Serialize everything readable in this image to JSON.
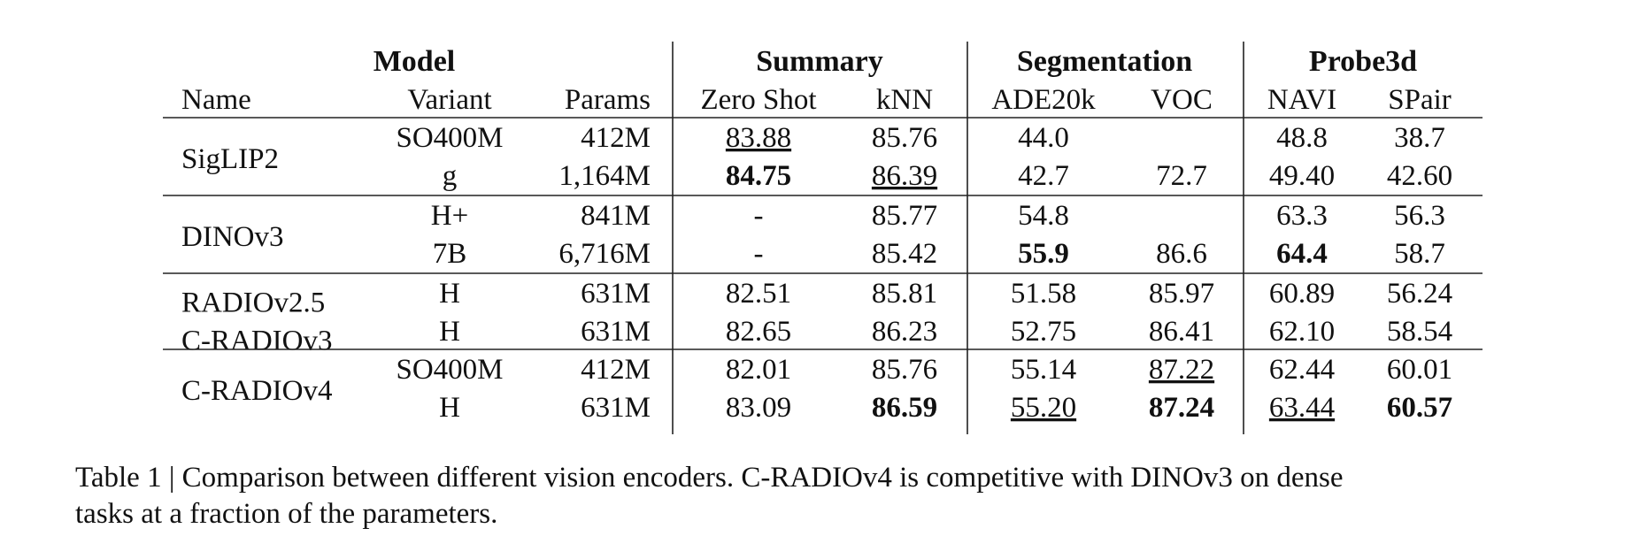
{
  "table": {
    "group_headers": [
      "Model",
      "Summary",
      "Segmentation",
      "Probe3d"
    ],
    "columns": [
      "Name",
      "Variant",
      "Params",
      "Zero Shot",
      "kNN",
      "ADE20k",
      "VOC",
      "NAVI",
      "SPair"
    ],
    "groups": [
      {
        "name": "SigLIP2",
        "rows": [
          [
            "SO400M",
            "412M",
            {
              "text": "83.88",
              "style": "underline"
            },
            "85.76",
            "44.0",
            null,
            "48.8",
            "38.7"
          ],
          [
            "g",
            "1,164M",
            {
              "text": "84.75",
              "style": "bold"
            },
            {
              "text": "86.39",
              "style": "underline"
            },
            "42.7",
            "72.7",
            "49.40",
            "42.60"
          ]
        ]
      },
      {
        "name": "DINOv3",
        "rows": [
          [
            "H+",
            "841M",
            "-",
            "85.77",
            "54.8",
            null,
            "63.3",
            "56.3"
          ],
          [
            "7B",
            "6,716M",
            "-",
            "85.42",
            {
              "text": "55.9",
              "style": "bold"
            },
            "86.6",
            {
              "text": "64.4",
              "style": "bold"
            },
            "58.7"
          ]
        ]
      },
      {
        "name": "RADIOv2.5",
        "rows": [
          [
            "H",
            "631M",
            "82.51",
            "85.81",
            "51.58",
            "85.97",
            "60.89",
            "56.24"
          ]
        ]
      },
      {
        "name": "C-RADIOv3",
        "rows": [
          [
            "H",
            "631M",
            "82.65",
            "86.23",
            "52.75",
            "86.41",
            "62.10",
            "58.54"
          ]
        ]
      },
      {
        "name": "C-RADIOv4",
        "rows": [
          [
            "SO400M",
            "412M",
            "82.01",
            "85.76",
            "55.14",
            {
              "text": "87.22",
              "style": "underline"
            },
            "62.44",
            "60.01"
          ],
          [
            "H",
            "631M",
            "83.09",
            {
              "text": "86.59",
              "style": "bold"
            },
            {
              "text": "55.20",
              "style": "underline"
            },
            {
              "text": "87.24",
              "style": "bold"
            },
            {
              "text": "63.44",
              "style": "underline"
            },
            {
              "text": "60.57",
              "style": "bold"
            }
          ]
        ]
      }
    ]
  },
  "caption": [
    "Table 1 | Comparison between different vision encoders. C-RADIOv4 is competitive with DINOv3 on dense",
    "tasks at a fraction of the parameters."
  ]
}
